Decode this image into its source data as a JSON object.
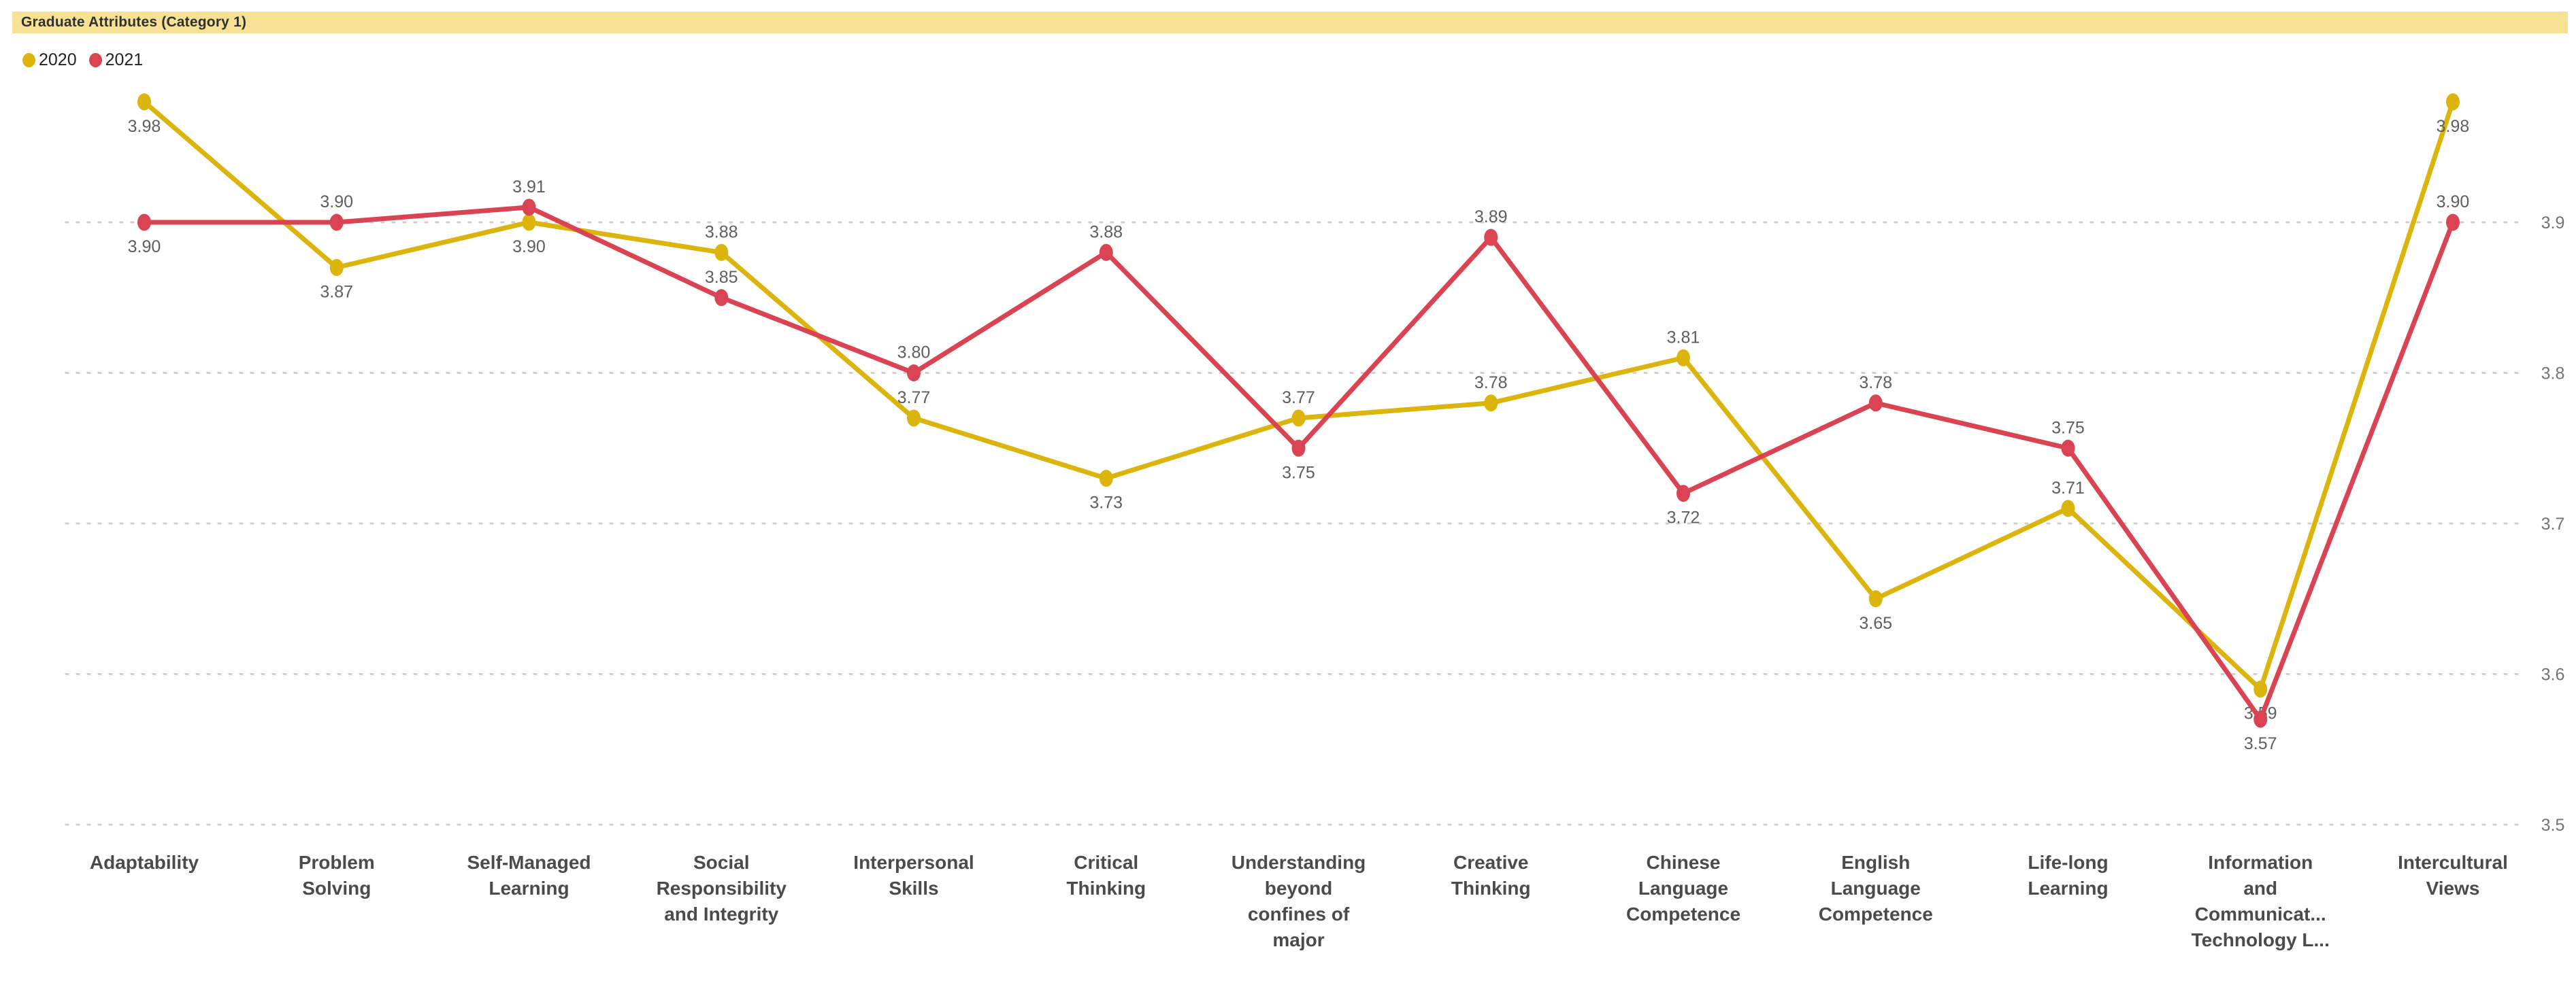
{
  "title": "Graduate Attributes (Category 1)",
  "legend": {
    "items": [
      {
        "label": "2020",
        "color": "#DBB40C"
      },
      {
        "label": "2021",
        "color": "#D94352"
      }
    ]
  },
  "colors": {
    "title_bar_bg": "#F7E194",
    "title_text": "#30302E",
    "gridline": "#D0CECC",
    "data_label": "#605E5C",
    "tick_label": "#75736F",
    "category_label": "#4C4B49",
    "series_2020": "#DBB40C",
    "series_2021": "#D94352"
  },
  "chart_data": {
    "type": "line",
    "title": "Graduate Attributes (Category 1)",
    "xlabel": "",
    "ylabel": "",
    "ylim": [
      3.5,
      4.0
    ],
    "y_ticks": [
      3.9,
      3.8,
      3.7,
      3.6,
      3.5
    ],
    "grid": true,
    "legend_position": "top-left",
    "value_decimals": 2,
    "categories": [
      "Adaptability",
      "Problem Solving",
      "Self-Managed Learning",
      "Social Responsibility and Integrity",
      "Interpersonal Skills",
      "Critical Thinking",
      "Understanding beyond confines of major",
      "Creative Thinking",
      "Chinese Language Competence",
      "English Language Competence",
      "Life-long Learning",
      "Information and Communicat... Technology L...",
      "Intercultural Views"
    ],
    "category_label_lines": [
      [
        "Adaptability"
      ],
      [
        "Problem",
        "Solving"
      ],
      [
        "Self-Managed",
        "Learning"
      ],
      [
        "Social",
        "Responsibility",
        "and Integrity"
      ],
      [
        "Interpersonal",
        "Skills"
      ],
      [
        "Critical",
        "Thinking"
      ],
      [
        "Understanding",
        "beyond",
        "confines of",
        "major"
      ],
      [
        "Creative",
        "Thinking"
      ],
      [
        "Chinese",
        "Language",
        "Competence"
      ],
      [
        "English",
        "Language",
        "Competence"
      ],
      [
        "Life-long",
        "Learning"
      ],
      [
        "Information",
        "and",
        "Communicat...",
        "Technology L..."
      ],
      [
        "Intercultural",
        "Views"
      ]
    ],
    "series": [
      {
        "name": "2020",
        "color": "#DBB40C",
        "values": [
          3.98,
          3.87,
          3.9,
          3.88,
          3.77,
          3.73,
          3.77,
          3.78,
          3.81,
          3.65,
          3.71,
          3.59,
          3.98
        ],
        "labels": [
          "3.98",
          "3.87",
          "3.90",
          "3.88",
          "3.77",
          "3.73",
          "3.77",
          "3.78",
          "3.81",
          "3.65",
          "3.71",
          "3.59",
          "3.98"
        ],
        "label_positions": [
          "below",
          "below",
          "below",
          "above",
          "above",
          "below",
          "above",
          "above",
          "above",
          "below",
          "above",
          "below",
          "below"
        ]
      },
      {
        "name": "2021",
        "color": "#D94352",
        "values": [
          3.9,
          3.9,
          3.91,
          3.85,
          3.8,
          3.88,
          3.75,
          3.89,
          3.72,
          3.78,
          3.75,
          3.57,
          3.9
        ],
        "labels": [
          "3.90",
          "3.90",
          "3.91",
          "3.85",
          "3.80",
          "3.88",
          "3.75",
          "3.89",
          "3.72",
          "3.78",
          "3.75",
          "3.57",
          "3.90"
        ],
        "label_positions": [
          "below",
          "above",
          "above",
          "above",
          "above",
          "above",
          "below",
          "above",
          "below",
          "above",
          "above",
          "below",
          "above"
        ]
      }
    ]
  }
}
